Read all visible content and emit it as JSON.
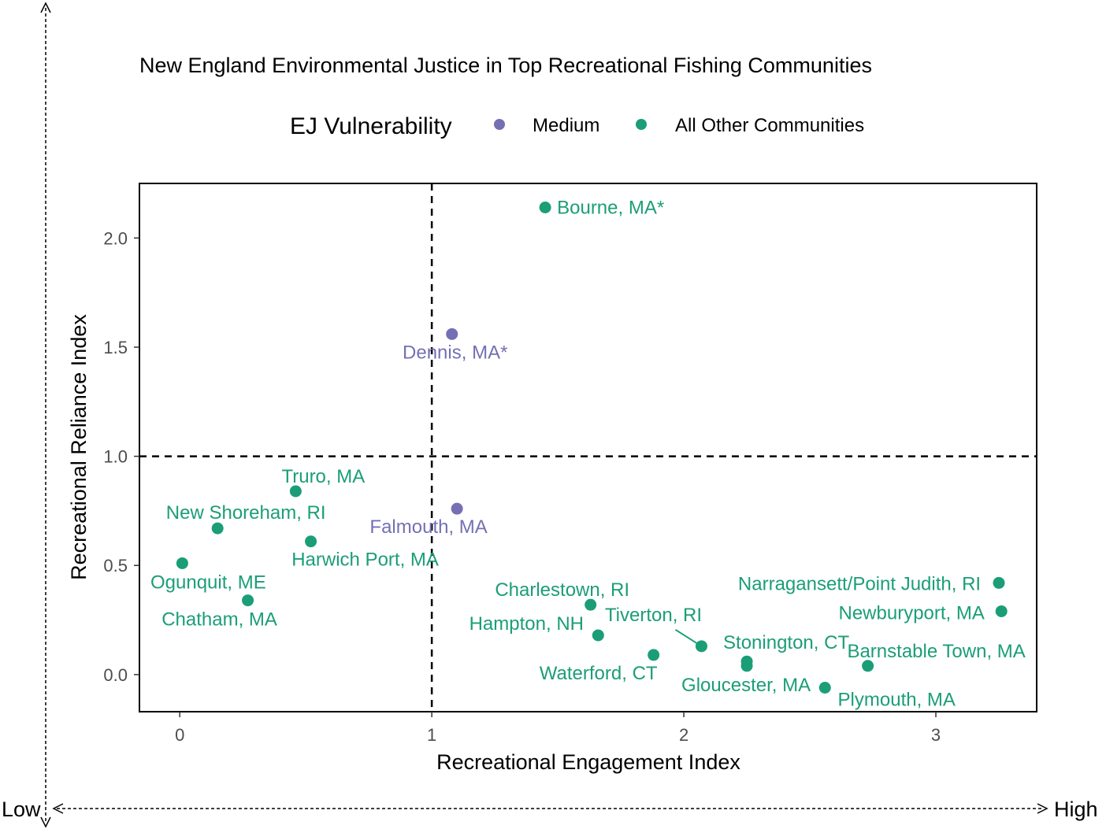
{
  "chart_data": {
    "type": "scatter",
    "title": "New England Environmental Justice in Top Recreational Fishing Communities",
    "xlabel": "Recreational Engagement Index",
    "ylabel": "Recreational Reliance Index",
    "xlim": [
      -0.16,
      3.4
    ],
    "ylim": [
      -0.17,
      2.25
    ],
    "x_ticks": [
      "0",
      "1",
      "2",
      "3"
    ],
    "y_ticks": [
      "0.0",
      "0.5",
      "1.0",
      "1.5",
      "2.0"
    ],
    "x_tick_values": [
      0,
      1,
      2,
      3
    ],
    "y_tick_values": [
      0.0,
      0.5,
      1.0,
      1.5,
      2.0
    ],
    "reference_lines": {
      "x": 1,
      "y": 1,
      "style": "dashed"
    },
    "grid": false,
    "legend": {
      "title": "EJ Vulnerability",
      "position": "top",
      "entries": [
        {
          "label": "Medium",
          "color": "#7570b3"
        },
        {
          "label": "All Other Communities",
          "color": "#1b9e77"
        }
      ]
    },
    "outer_arrows": {
      "low_label": "Low",
      "high_label": "High"
    },
    "points": [
      {
        "name": "Bourne, MA*",
        "x": 1.45,
        "y": 2.14,
        "group": "All Other Communities"
      },
      {
        "name": "Dennis, MA*",
        "x": 1.08,
        "y": 1.56,
        "group": "Medium"
      },
      {
        "name": "Truro, MA",
        "x": 0.46,
        "y": 0.84,
        "group": "All Other Communities"
      },
      {
        "name": "Falmouth, MA",
        "x": 1.1,
        "y": 0.76,
        "group": "Medium"
      },
      {
        "name": "New Shoreham, RI",
        "x": 0.15,
        "y": 0.67,
        "group": "All Other Communities"
      },
      {
        "name": "Harwich Port, MA",
        "x": 0.52,
        "y": 0.61,
        "group": "All Other Communities"
      },
      {
        "name": "Ogunquit, ME",
        "x": 0.01,
        "y": 0.51,
        "group": "All Other Communities"
      },
      {
        "name": "Chatham, MA",
        "x": 0.27,
        "y": 0.34,
        "group": "All Other Communities"
      },
      {
        "name": "Charlestown, RI",
        "x": 1.63,
        "y": 0.32,
        "group": "All Other Communities"
      },
      {
        "name": "Hampton, NH",
        "x": 1.66,
        "y": 0.18,
        "group": "All Other Communities"
      },
      {
        "name": "Tiverton, RI",
        "x": 2.07,
        "y": 0.13,
        "group": "All Other Communities"
      },
      {
        "name": "Waterford, CT",
        "x": 1.88,
        "y": 0.09,
        "group": "All Other Communities"
      },
      {
        "name": "Stonington, CT",
        "x": 2.25,
        "y": 0.06,
        "group": "All Other Communities"
      },
      {
        "name": "Gloucester, MA",
        "x": 2.25,
        "y": 0.04,
        "group": "All Other Communities"
      },
      {
        "name": "Narragansett/Point Judith, RI",
        "x": 3.25,
        "y": 0.42,
        "group": "All Other Communities"
      },
      {
        "name": "Newburyport, MA",
        "x": 3.26,
        "y": 0.29,
        "group": "All Other Communities"
      },
      {
        "name": "Barnstable Town, MA",
        "x": 2.73,
        "y": 0.04,
        "group": "All Other Communities"
      },
      {
        "name": "Plymouth, MA",
        "x": 2.56,
        "y": -0.06,
        "group": "All Other Communities"
      }
    ]
  }
}
